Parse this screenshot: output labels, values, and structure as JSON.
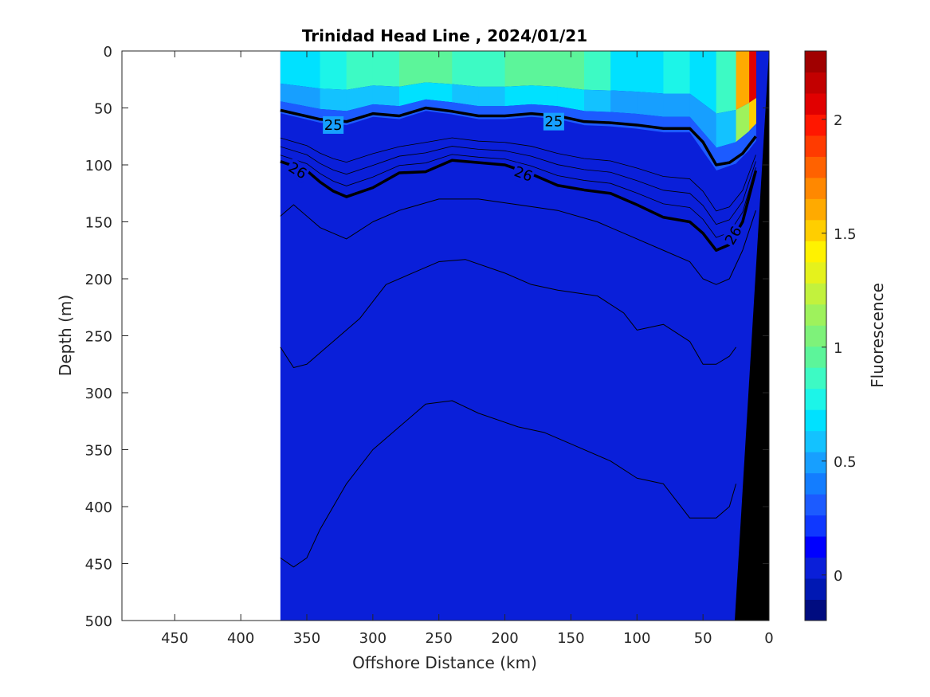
{
  "chart_data": {
    "type": "heatmap",
    "title": "Trinidad Head Line , 2024/01/21",
    "xlabel": "Offshore Distance (km)",
    "ylabel": "Depth (m)",
    "xlim": [
      490,
      0
    ],
    "ylim": [
      0,
      500
    ],
    "x_reversed": true,
    "y_reversed": true,
    "x_ticks": [
      450,
      400,
      350,
      300,
      250,
      200,
      150,
      100,
      50,
      0
    ],
    "y_ticks": [
      0,
      50,
      100,
      150,
      200,
      250,
      300,
      350,
      400,
      450,
      500
    ],
    "colorbar": {
      "label": "Fluorescence",
      "range": [
        -0.2,
        2.3
      ],
      "ticks": [
        0,
        0.5,
        1,
        1.5,
        2
      ],
      "tick_labels": [
        "0",
        "0.5",
        "1",
        "1.5",
        "2"
      ],
      "colors": [
        "#000c80",
        "#0018b3",
        "#0a1fd9",
        "#0000ff",
        "#0f38ff",
        "#1c5bff",
        "#137dff",
        "#179fff",
        "#13c2ff",
        "#00e1ff",
        "#1cf5e8",
        "#3dfac4",
        "#5cf59a",
        "#7ef27a",
        "#9ef25c",
        "#c2f23d",
        "#e5f21c",
        "#fff200",
        "#ffce00",
        "#ffaa00",
        "#ff8800",
        "#ff6200",
        "#ff3b00",
        "#ff1700",
        "#e10000",
        "#c20000",
        "#a00000"
      ]
    },
    "data_extent_km": [
      370,
      0
    ],
    "surface_fluorescence": {
      "note_depth_m": [
        0,
        50
      ],
      "x_km": [
        370,
        340,
        320,
        300,
        280,
        260,
        240,
        220,
        200,
        180,
        160,
        140,
        120,
        100,
        80,
        60,
        40,
        25,
        15,
        10
      ],
      "values": [
        0.7,
        0.75,
        0.8,
        0.85,
        0.9,
        0.95,
        0.9,
        0.85,
        0.95,
        1.0,
        1.0,
        0.9,
        0.85,
        0.6,
        0.8,
        0.7,
        0.6,
        1.2,
        2.0,
        2.2
      ]
    },
    "density_contours": [
      {
        "level": "25",
        "labeled": true,
        "x_km": [
          370,
          340,
          320,
          300,
          280,
          260,
          240,
          220,
          200,
          180,
          160,
          140,
          120,
          100,
          80,
          60,
          50,
          40,
          30,
          20,
          10
        ],
        "depth_m": [
          52,
          60,
          62,
          55,
          57,
          50,
          53,
          57,
          57,
          55,
          57,
          62,
          63,
          65,
          68,
          68,
          80,
          100,
          98,
          90,
          75
        ]
      },
      {
        "level": "26",
        "labeled": true,
        "x_km": [
          370,
          350,
          340,
          330,
          320,
          300,
          280,
          260,
          240,
          220,
          200,
          180,
          160,
          140,
          120,
          100,
          80,
          60,
          50,
          40,
          30,
          20,
          10
        ],
        "depth_m": [
          97,
          105,
          115,
          123,
          128,
          120,
          107,
          106,
          96,
          98,
          100,
          108,
          118,
          122,
          125,
          135,
          146,
          150,
          160,
          175,
          170,
          150,
          105
        ]
      },
      {
        "level": "",
        "labeled": false,
        "x_km": [
          370,
          360,
          340,
          320,
          300,
          280,
          250,
          220,
          190,
          160,
          130,
          100,
          80,
          60,
          50,
          40,
          30,
          20,
          10
        ],
        "depth_m": [
          145,
          135,
          155,
          165,
          150,
          140,
          130,
          130,
          135,
          140,
          150,
          165,
          175,
          185,
          200,
          205,
          200,
          175,
          140
        ]
      },
      {
        "level": "",
        "labeled": false,
        "x_km": [
          370,
          360,
          350,
          330,
          310,
          290,
          270,
          250,
          230,
          200,
          180,
          160,
          130,
          110,
          100,
          80,
          60,
          50,
          40,
          30,
          25
        ],
        "depth_m": [
          260,
          278,
          275,
          255,
          235,
          205,
          195,
          185,
          183,
          195,
          205,
          210,
          215,
          230,
          245,
          240,
          255,
          275,
          275,
          268,
          260
        ]
      },
      {
        "level": "",
        "labeled": false,
        "x_km": [
          370,
          360,
          350,
          340,
          320,
          300,
          280,
          260,
          240,
          220,
          190,
          170,
          150,
          120,
          100,
          80,
          60,
          40,
          30,
          25
        ],
        "depth_m": [
          445,
          453,
          445,
          420,
          380,
          350,
          330,
          310,
          307,
          318,
          330,
          335,
          345,
          360,
          375,
          380,
          410,
          410,
          400,
          380
        ]
      }
    ]
  }
}
